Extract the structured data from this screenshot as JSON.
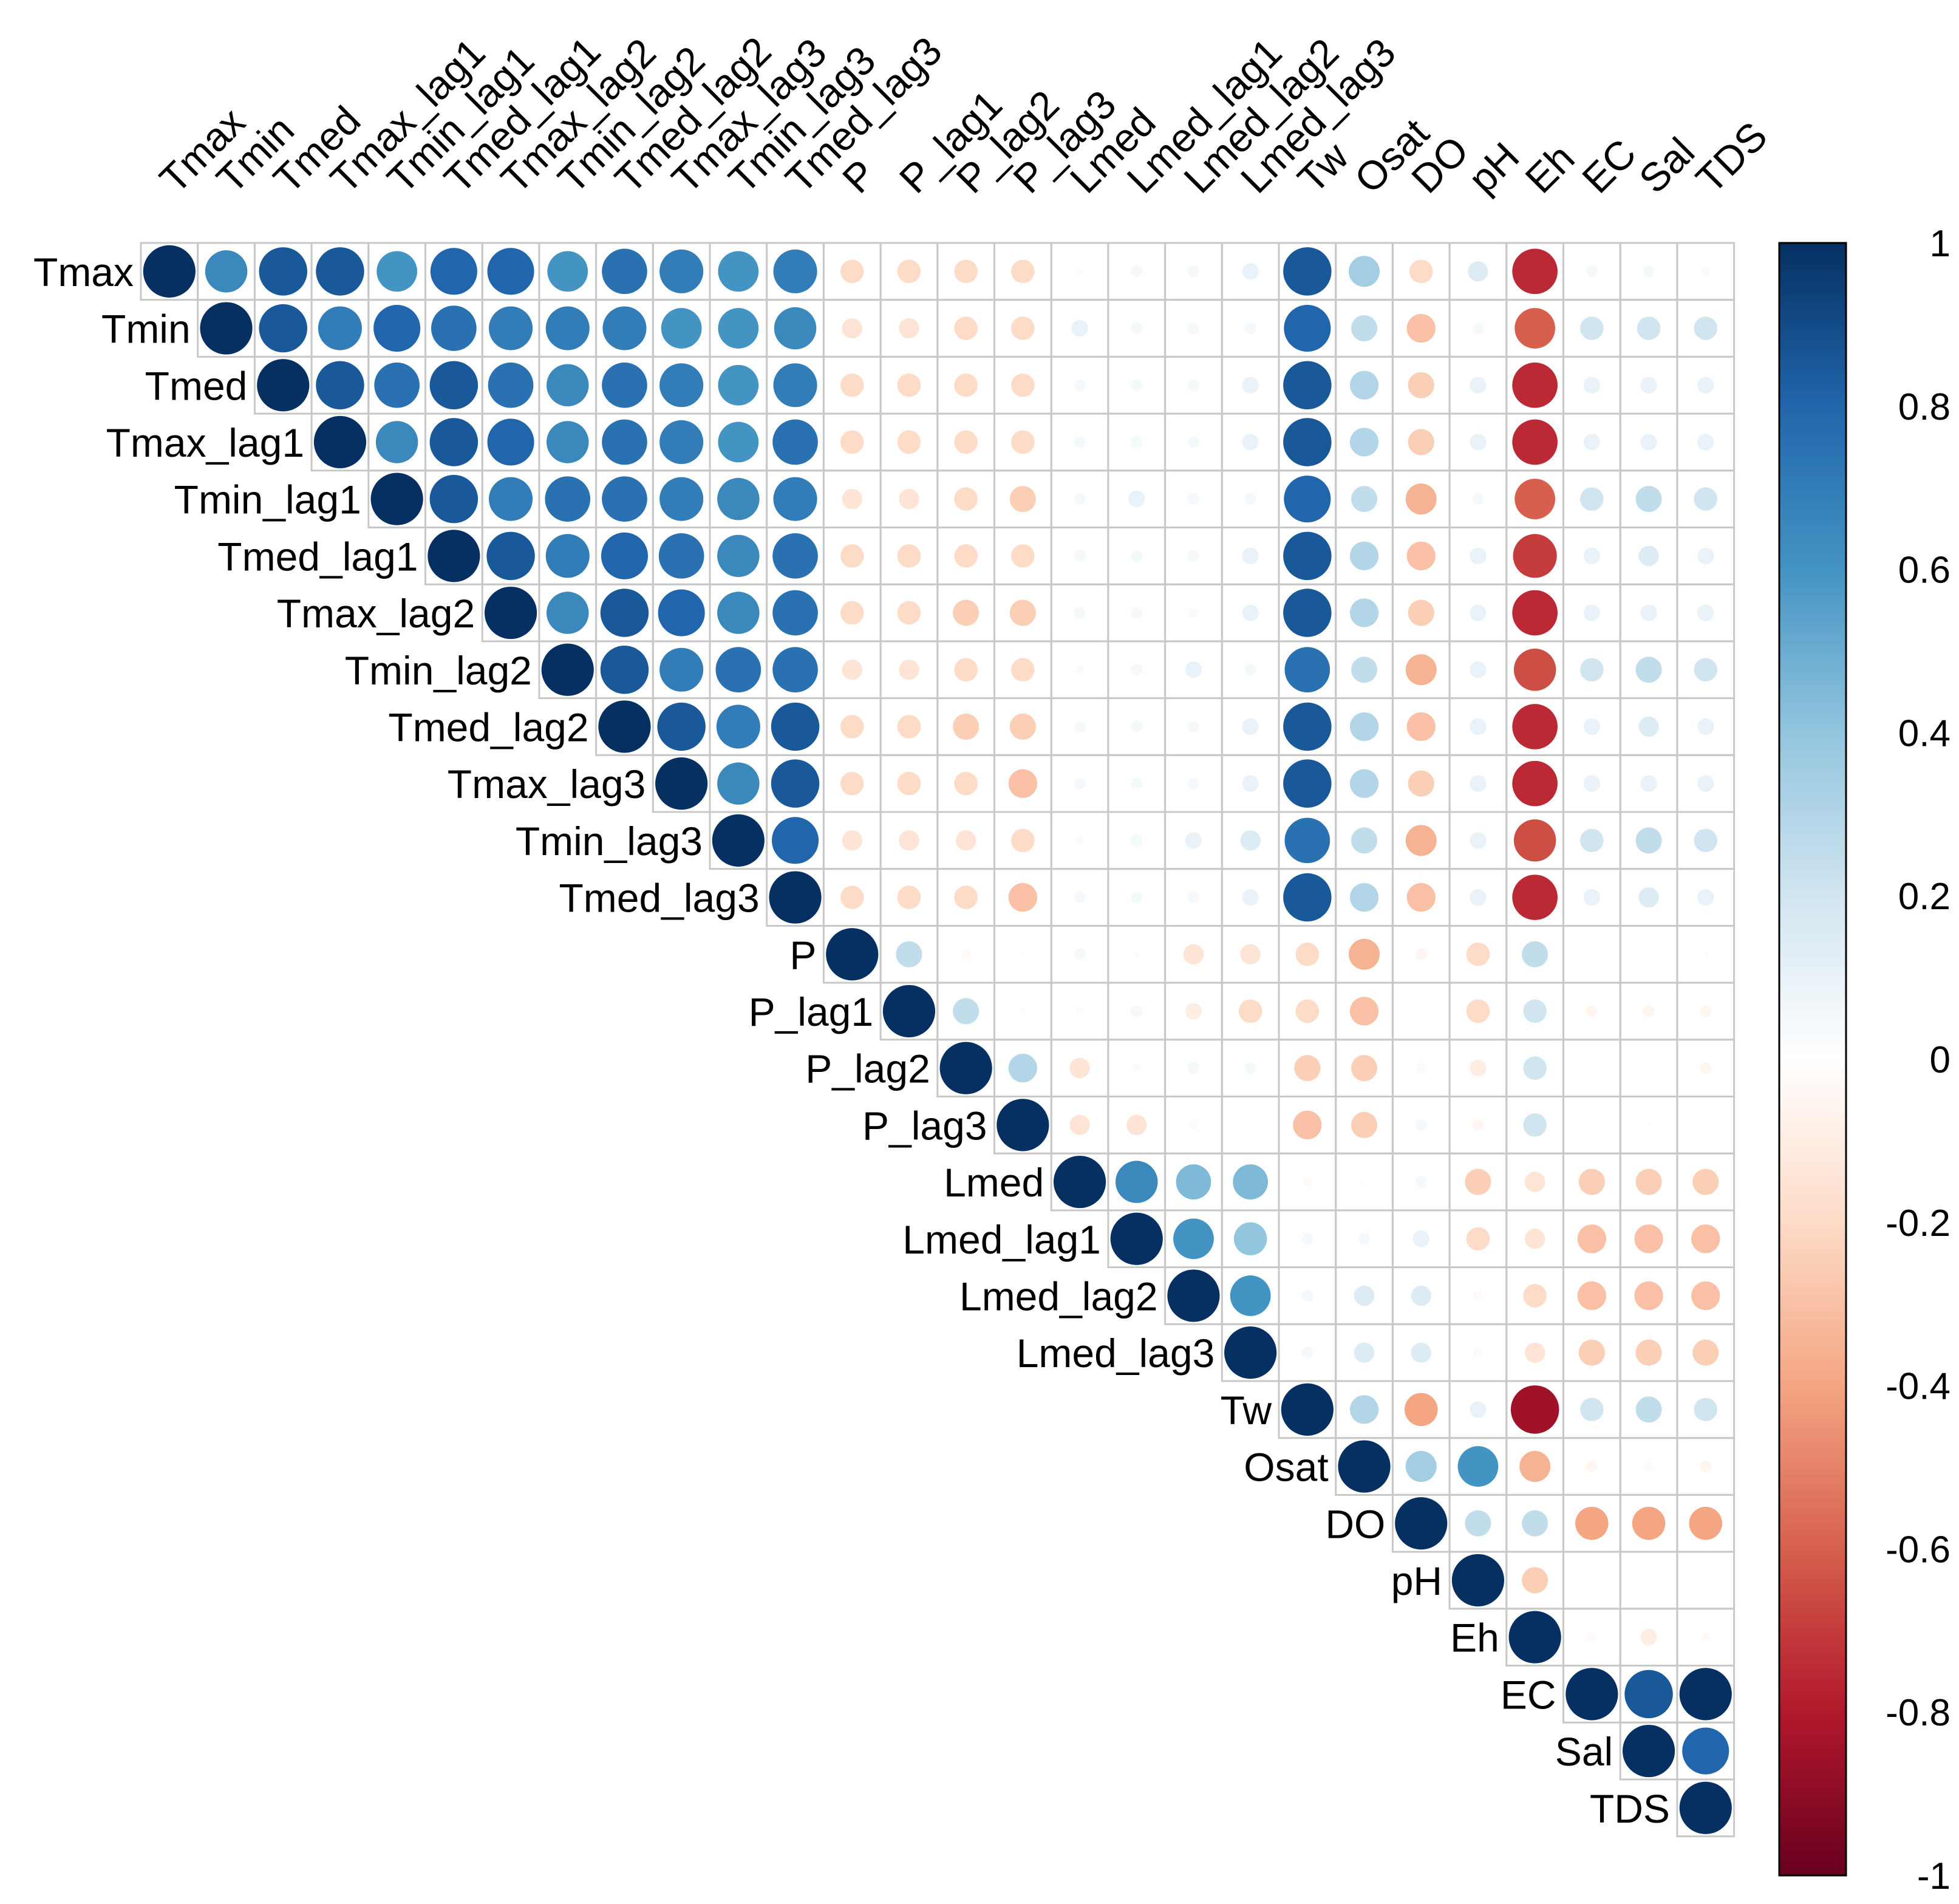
{
  "chart_data": {
    "type": "heatmap",
    "style": "upper-triangle correlation circles",
    "variables": [
      "Tmax",
      "Tmin",
      "Tmed",
      "Tmax_lag1",
      "Tmin_lag1",
      "Tmed_lag1",
      "Tmax_lag2",
      "Tmin_lag2",
      "Tmed_lag2",
      "Tmax_lag3",
      "Tmin_lag3",
      "Tmed_lag3",
      "P",
      "P_lag1",
      "P_lag2",
      "P_lag3",
      "Lmed",
      "Lmed_lag1",
      "Lmed_lag2",
      "Lmed_lag3",
      "Tw",
      "Osat",
      "DO",
      "pH",
      "Eh",
      "EC",
      "Sal",
      "TDS"
    ],
    "rows": [
      [
        1,
        0.65,
        0.85,
        0.85,
        0.6,
        0.8,
        0.8,
        0.6,
        0.75,
        0.7,
        0.6,
        0.7,
        -0.2,
        -0.2,
        -0.2,
        -0.2,
        0.02,
        0.05,
        0.05,
        0.1,
        0.85,
        0.35,
        -0.2,
        0.15,
        -0.75,
        0.05,
        0.05,
        0.03
      ],
      [
        1,
        0.85,
        0.7,
        0.8,
        0.75,
        0.7,
        0.7,
        0.7,
        0.6,
        0.6,
        0.65,
        -0.15,
        -0.15,
        -0.2,
        -0.2,
        0.1,
        0.05,
        0.05,
        0.05,
        0.8,
        0.25,
        -0.3,
        0.05,
        -0.6,
        0.2,
        0.2,
        0.2
      ],
      [
        1,
        0.85,
        0.75,
        0.85,
        0.75,
        0.65,
        0.75,
        0.7,
        0.6,
        0.7,
        -0.2,
        -0.2,
        -0.2,
        -0.2,
        0.05,
        0.05,
        0.05,
        0.1,
        0.85,
        0.3,
        -0.25,
        0.1,
        -0.75,
        0.1,
        0.1,
        0.1
      ],
      [
        1,
        0.65,
        0.85,
        0.8,
        0.65,
        0.75,
        0.7,
        0.6,
        0.75,
        -0.2,
        -0.2,
        -0.2,
        -0.2,
        0.05,
        0.05,
        0.05,
        0.1,
        0.85,
        0.3,
        -0.25,
        0.1,
        -0.75,
        0.1,
        0.1,
        0.1
      ],
      [
        1,
        0.85,
        0.7,
        0.75,
        0.75,
        0.7,
        0.65,
        0.7,
        -0.15,
        -0.15,
        -0.2,
        -0.25,
        0.05,
        0.1,
        0.05,
        0.05,
        0.8,
        0.25,
        -0.35,
        0.05,
        -0.6,
        0.2,
        0.25,
        0.2
      ],
      [
        1,
        0.85,
        0.7,
        0.8,
        0.75,
        0.65,
        0.75,
        -0.2,
        -0.2,
        -0.2,
        -0.2,
        0.05,
        0.05,
        0.05,
        0.1,
        0.85,
        0.3,
        -0.3,
        0.1,
        -0.7,
        0.1,
        0.15,
        0.1
      ],
      [
        1,
        0.65,
        0.85,
        0.8,
        0.65,
        0.75,
        -0.2,
        -0.2,
        -0.25,
        -0.25,
        0.05,
        0.05,
        0.03,
        0.1,
        0.85,
        0.3,
        -0.25,
        0.1,
        -0.75,
        0.1,
        0.1,
        0.1
      ],
      [
        1,
        0.85,
        0.7,
        0.75,
        0.75,
        -0.15,
        -0.15,
        -0.2,
        -0.2,
        0.03,
        0.05,
        0.1,
        0.05,
        0.75,
        0.25,
        -0.35,
        0.1,
        -0.65,
        0.2,
        0.25,
        0.2
      ],
      [
        1,
        0.85,
        0.7,
        0.85,
        -0.2,
        -0.2,
        -0.25,
        -0.25,
        0.05,
        0.05,
        0.05,
        0.1,
        0.85,
        0.3,
        -0.3,
        0.1,
        -0.75,
        0.1,
        0.15,
        0.1
      ],
      [
        1,
        0.65,
        0.85,
        -0.2,
        -0.2,
        -0.2,
        -0.3,
        0.05,
        0.05,
        0.05,
        0.1,
        0.85,
        0.3,
        -0.25,
        0.1,
        -0.75,
        0.1,
        0.1,
        0.1
      ],
      [
        1,
        0.8,
        -0.15,
        -0.15,
        -0.15,
        -0.2,
        0.03,
        0.05,
        0.1,
        0.15,
        0.75,
        0.25,
        -0.35,
        0.1,
        -0.65,
        0.2,
        0.25,
        0.2
      ],
      [
        1,
        -0.2,
        -0.2,
        -0.2,
        -0.3,
        0.05,
        0.05,
        0.05,
        0.1,
        0.85,
        0.3,
        -0.3,
        0.1,
        -0.75,
        0.1,
        0.15,
        0.1
      ],
      [
        1,
        0.25,
        -0.03,
        0.01,
        0.05,
        0.02,
        -0.15,
        -0.15,
        -0.2,
        -0.35,
        -0.05,
        -0.2,
        0.25,
        0,
        0,
        -0.01
      ],
      [
        1,
        0.25,
        -0.02,
        0.02,
        0.05,
        -0.1,
        -0.2,
        -0.2,
        -0.3,
        0,
        -0.2,
        0.2,
        -0.05,
        -0.05,
        -0.05
      ],
      [
        1,
        0.3,
        -0.15,
        -0.03,
        0.05,
        0.05,
        -0.25,
        -0.25,
        -0.03,
        -0.1,
        0.2,
        0,
        0,
        -0.05
      ],
      [
        1,
        -0.15,
        -0.15,
        -0.03,
        0,
        -0.3,
        -0.25,
        0.05,
        -0.05,
        0.2,
        0,
        -0.01,
        0
      ],
      [
        1,
        0.65,
        0.45,
        0.45,
        -0.03,
        -0.01,
        0.05,
        -0.25,
        -0.15,
        -0.25,
        -0.25,
        -0.25
      ],
      [
        1,
        0.6,
        0.4,
        0.05,
        0.05,
        0.1,
        -0.2,
        -0.15,
        -0.3,
        -0.3,
        -0.3
      ],
      [
        1,
        0.6,
        0.05,
        0.15,
        0.15,
        -0.03,
        -0.2,
        -0.3,
        -0.3,
        -0.3
      ],
      [
        1,
        0.05,
        0.15,
        0.15,
        -0.03,
        -0.15,
        -0.25,
        -0.25,
        -0.25
      ],
      [
        1,
        0.3,
        -0.4,
        0.1,
        -0.85,
        0.2,
        0.25,
        0.2
      ],
      [
        1,
        0.35,
        0.6,
        -0.35,
        -0.05,
        -0.03,
        -0.05
      ],
      [
        1,
        0.25,
        0.25,
        -0.4,
        -0.4,
        -0.4
      ],
      [
        1,
        -0.25,
        0,
        0,
        0
      ],
      [
        1,
        -0.03,
        -0.1,
        -0.03
      ],
      [
        1,
        0.85,
        1
      ],
      [
        1,
        0.8
      ],
      [
        1
      ]
    ],
    "colorbar": {
      "range": [
        -1,
        1
      ],
      "ticks": [
        "1",
        "0.8",
        "0.6",
        "0.4",
        "0.2",
        "0",
        "-0.2",
        "-0.4",
        "-0.6",
        "-0.8",
        "-1"
      ]
    },
    "colors": {
      "negative": "#67001f",
      "zero": "#ffffff",
      "positive": "#053061",
      "grid": "#c8c8c8"
    }
  }
}
